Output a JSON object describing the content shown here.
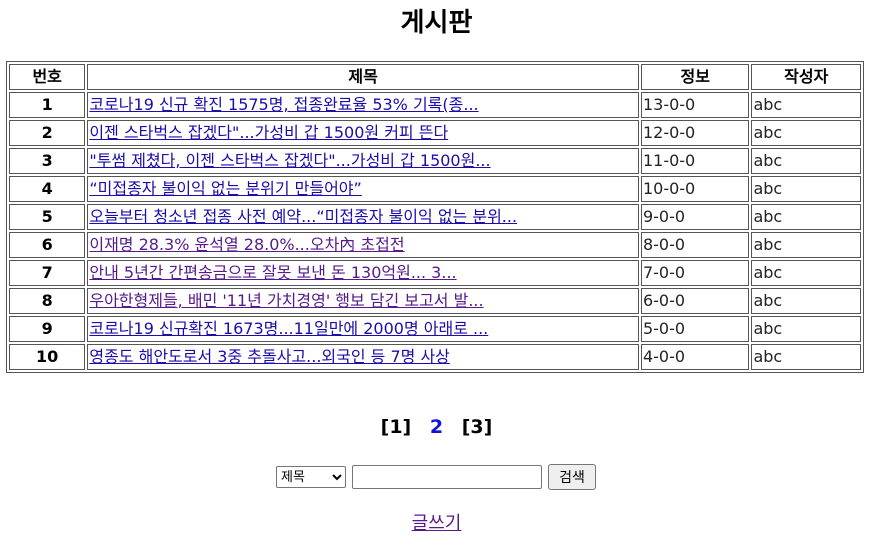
{
  "page_title": "게시판",
  "table": {
    "headers": {
      "num": "번호",
      "subject": "제목",
      "info": "정보",
      "author": "작성자"
    },
    "rows": [
      {
        "num": "1",
        "subject": "코로나19 신규 확진 1575명, 접종완료율 53% 기록(종...",
        "info": "13-0-0",
        "author": "abc",
        "visited": false
      },
      {
        "num": "2",
        "subject": "이젠 스타벅스 잡겠다\"...가성비 갑 1500원 커피 뜬다",
        "info": "12-0-0",
        "author": "abc",
        "visited": false
      },
      {
        "num": "3",
        "subject": "\"투썸 제쳤다, 이젠 스타벅스 잡겠다\"...가성비 갑 1500원...",
        "info": "11-0-0",
        "author": "abc",
        "visited": false
      },
      {
        "num": "4",
        "subject": "“미접종자 불이익 없는 분위기 만들어야”",
        "info": "10-0-0",
        "author": "abc",
        "visited": false
      },
      {
        "num": "5",
        "subject": "오늘부터 청소년 접종 사전 예약...“미접종자 불이익 없는 분위...",
        "info": "9-0-0",
        "author": "abc",
        "visited": false
      },
      {
        "num": "6",
        "subject": "이재명 28.3% 윤석열 28.0%...오차內 초접전",
        "info": "8-0-0",
        "author": "abc",
        "visited": true
      },
      {
        "num": "7",
        "subject": "안내 5년간 간편송금으로 잘못 보낸 돈 130억원... 3...",
        "info": "7-0-0",
        "author": "abc",
        "visited": true
      },
      {
        "num": "8",
        "subject": "우아한형제들, 배민 '11년 가치경영' 행보 담긴 보고서 발...",
        "info": "6-0-0",
        "author": "abc",
        "visited": true
      },
      {
        "num": "9",
        "subject": "코로나19 신규확진 1673명...11일만에 2000명 아래로 ...",
        "info": "5-0-0",
        "author": "abc",
        "visited": false
      },
      {
        "num": "10",
        "subject": "영종도 해안도로서 3중 추돌사고...외국인 등 7명 사상",
        "info": "4-0-0",
        "author": "abc",
        "visited": false
      }
    ]
  },
  "pagination": {
    "pages": [
      "[1]",
      "2",
      "[3]"
    ],
    "current": "2"
  },
  "search": {
    "field_selected": "제목",
    "field_options": [
      "제목"
    ],
    "query_value": "",
    "button_label": "검색"
  },
  "write_link": "글쓰기",
  "colors": {
    "link": "#1a0dab",
    "visited_link": "#551a8b",
    "current_page": "#1010d8"
  }
}
